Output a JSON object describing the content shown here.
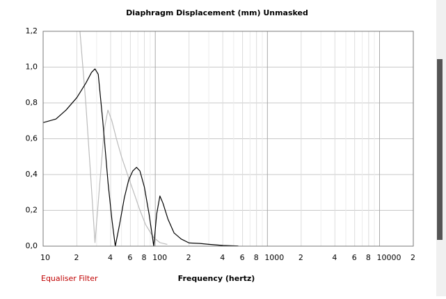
{
  "chart_data": {
    "type": "line",
    "title": "Diaphragm Displacement (mm)   Unmasked",
    "x_label": "Frequency (hertz)",
    "annotation": "Equaliser Filter",
    "x_scale": "log",
    "grid": true,
    "xlim": [
      10,
      20000
    ],
    "ylim": [
      0,
      1.2
    ],
    "xticks": [
      10,
      {
        "value": 20,
        "label": "2"
      },
      {
        "value": 40,
        "label": "4"
      },
      {
        "value": 60,
        "label": "6"
      },
      {
        "value": 80,
        "label": "8"
      },
      100,
      {
        "value": 200,
        "label": "2"
      },
      {
        "value": 400,
        "label": "4"
      },
      {
        "value": 600,
        "label": "6"
      },
      {
        "value": 800,
        "label": "8"
      },
      {
        "value": 1000,
        "label": "1000"
      },
      {
        "value": 2000,
        "label": "2"
      },
      {
        "value": 4000,
        "label": "4"
      },
      {
        "value": 6000,
        "label": "6"
      },
      {
        "value": 8000,
        "label": "8"
      },
      {
        "value": 10000,
        "label": "10000"
      },
      {
        "value": 20000,
        "label": "2"
      }
    ],
    "yticks": [
      {
        "value": 0,
        "label": "0,0"
      },
      {
        "value": 0.2,
        "label": "0,2"
      },
      {
        "value": 0.4,
        "label": "0,4"
      },
      {
        "value": 0.6,
        "label": "0,6"
      },
      {
        "value": 0.8,
        "label": "0,8"
      },
      {
        "value": 1.0,
        "label": "1,0"
      },
      {
        "value": 1.2,
        "label": "1,2"
      }
    ],
    "series": [
      {
        "color": "#000000",
        "x": [
          10,
          13,
          16,
          20,
          24,
          27,
          29,
          31,
          34,
          38,
          41,
          44,
          48,
          53,
          58,
          63,
          68,
          73,
          80,
          88,
          97,
          103,
          110,
          117,
          130,
          147,
          170,
          200,
          250,
          300,
          400,
          550
        ],
        "values": [
          0.69,
          0.71,
          0.76,
          0.83,
          0.91,
          0.97,
          0.99,
          0.96,
          0.7,
          0.35,
          0.15,
          0.0,
          0.12,
          0.27,
          0.37,
          0.42,
          0.44,
          0.42,
          0.33,
          0.18,
          0.0,
          0.18,
          0.28,
          0.24,
          0.15,
          0.074,
          0.04,
          0.018,
          0.015,
          0.01,
          0.004,
          0.001
        ]
      },
      {
        "color": "#bbbbbb",
        "x": [
          21.3,
          24,
          26.5,
          29,
          32,
          35,
          37.8,
          41,
          45,
          50,
          58,
          66,
          72,
          82,
          96,
          110,
          128
        ],
        "values": [
          1.2,
          0.8,
          0.4,
          0.02,
          0.35,
          0.65,
          0.76,
          0.7,
          0.6,
          0.5,
          0.38,
          0.28,
          0.21,
          0.12,
          0.05,
          0.02,
          0.01
        ]
      }
    ]
  }
}
